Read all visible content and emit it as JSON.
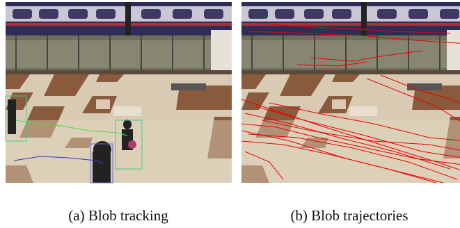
{
  "figures": [
    {
      "caption": "(a) Blob tracking"
    },
    {
      "caption": "(b) Blob trajectories"
    }
  ]
}
